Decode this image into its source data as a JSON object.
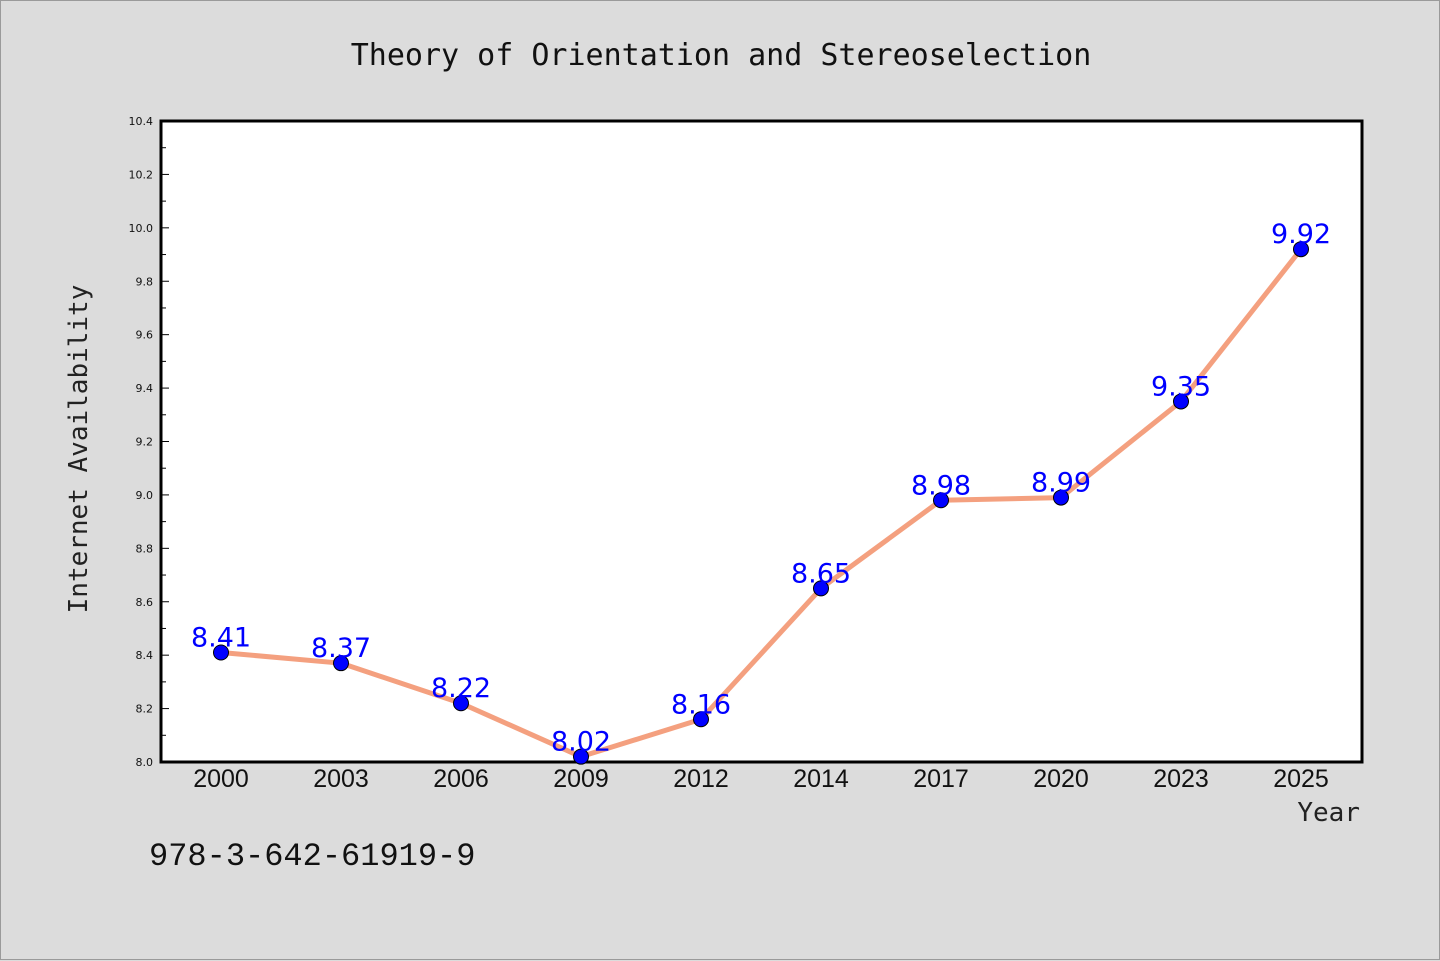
{
  "chart_data": {
    "type": "line",
    "title": "Theory of Orientation and Stereoselection",
    "xlabel": "Year",
    "ylabel": "Internet Availability",
    "categories": [
      "2000",
      "2003",
      "2006",
      "2009",
      "2012",
      "2014",
      "2017",
      "2020",
      "2023",
      "2025"
    ],
    "series": [
      {
        "values": [
          8.41,
          8.37,
          8.22,
          8.02,
          8.16,
          8.65,
          8.98,
          8.99,
          9.35,
          9.92
        ],
        "data_labels": [
          "8.41",
          "8.37",
          "8.22",
          "8.02",
          "8.16",
          "8.65",
          "8.98",
          "8.99",
          "9.35",
          "9.92"
        ],
        "line_color": "#f4a07f",
        "marker_color": "#0000ff"
      }
    ],
    "ylim": [
      8.0,
      10.4
    ],
    "yticks": [
      "8.0",
      "8.2",
      "8.4",
      "8.6",
      "8.8",
      "9.0",
      "9.2",
      "9.4",
      "9.6",
      "9.8",
      "10.0",
      "10.2",
      "10.4"
    ],
    "grid": false,
    "legend": false
  },
  "footnote": "978-3-642-61919-9",
  "colors": {
    "background": "#dcdcdc",
    "plot_area": "#ffffff",
    "line": "#f4a07f",
    "marker": "#0000ff",
    "data_label": "#0000ff"
  }
}
